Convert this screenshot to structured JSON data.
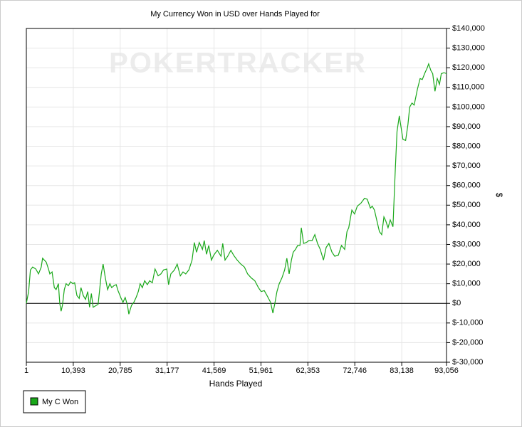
{
  "chart_data": {
    "type": "line",
    "title": "My Currency Won in USD over Hands Played for",
    "watermark": "POKERTRACKER",
    "x_label": "Hands Played",
    "y_label": "$",
    "xlim": [
      1,
      93056
    ],
    "ylim": [
      -30000,
      140000
    ],
    "xticks": [
      1,
      {
        "value": 10393,
        "label": "10,393"
      },
      {
        "value": 20785,
        "label": "20,785"
      },
      {
        "value": 31177,
        "label": "31,177"
      },
      {
        "value": 41569,
        "label": "41,569"
      },
      {
        "value": 51961,
        "label": "51,961"
      },
      {
        "value": 62353,
        "label": "62,353"
      },
      {
        "value": 72746,
        "label": "72,746"
      },
      {
        "value": 83138,
        "label": "83,138"
      },
      {
        "value": 93056,
        "label": "93,056"
      }
    ],
    "yticks": [
      {
        "value": 140000,
        "label": "$140,000"
      },
      {
        "value": 130000,
        "label": "$130,000"
      },
      {
        "value": 120000,
        "label": "$120,000"
      },
      {
        "value": 110000,
        "label": "$110,000"
      },
      {
        "value": 100000,
        "label": "$100,000"
      },
      {
        "value": 90000,
        "label": "$90,000"
      },
      {
        "value": 80000,
        "label": "$80,000"
      },
      {
        "value": 70000,
        "label": "$70,000"
      },
      {
        "value": 60000,
        "label": "$60,000"
      },
      {
        "value": 50000,
        "label": "$50,000"
      },
      {
        "value": 40000,
        "label": "$40,000"
      },
      {
        "value": 30000,
        "label": "$30,000"
      },
      {
        "value": 20000,
        "label": "$20,000"
      },
      {
        "value": 10000,
        "label": "$10,000"
      },
      {
        "value": 0,
        "label": "$0"
      },
      {
        "value": -10000,
        "label": "$-10,000"
      },
      {
        "value": -20000,
        "label": "$-20,000"
      },
      {
        "value": -30000,
        "label": "$-30,000"
      }
    ],
    "grid": true,
    "reference_line": 0,
    "legend_position": "bottom-left",
    "x": [
      1,
      500,
      900,
      1400,
      2100,
      2700,
      3300,
      3600,
      4400,
      4900,
      5200,
      5700,
      6200,
      6600,
      7100,
      7400,
      7700,
      8000,
      8400,
      8800,
      9300,
      9800,
      10300,
      10700,
      11200,
      11700,
      12100,
      12600,
      13100,
      13600,
      14000,
      14400,
      14800,
      15500,
      15900,
      16600,
      17000,
      17500,
      18000,
      18500,
      18900,
      19400,
      19900,
      20300,
      21000,
      21400,
      21900,
      22400,
      22700,
      23300,
      23800,
      24300,
      24800,
      25200,
      25700,
      26200,
      26800,
      27300,
      27900,
      28500,
      29200,
      29800,
      30400,
      31100,
      31500,
      32000,
      32800,
      33400,
      34100,
      34700,
      35300,
      36000,
      36700,
      37200,
      37700,
      38300,
      39000,
      39400,
      39900,
      40400,
      41000,
      41500,
      42300,
      43100,
      43500,
      44000,
      44600,
      45300,
      45900,
      46700,
      47500,
      48300,
      49000,
      49800,
      50600,
      51400,
      52000,
      52700,
      53300,
      54100,
      54600,
      55000,
      55500,
      56000,
      56600,
      57200,
      57700,
      58200,
      58700,
      59100,
      59600,
      60100,
      60600,
      60900,
      61400,
      62000,
      62600,
      63300,
      63900,
      64500,
      65100,
      65800,
      66400,
      67000,
      67700,
      68300,
      69100,
      69800,
      70500,
      71000,
      71400,
      72100,
      72700,
      73300,
      74100,
      74900,
      75500,
      76200,
      76600,
      77100,
      77700,
      78200,
      78700,
      79200,
      79600,
      80100,
      80600,
      81200,
      81700,
      82100,
      82600,
      82900,
      83400,
      84000,
      84500,
      84900,
      85400,
      85900,
      86600,
      87200,
      87700,
      88300,
      88800,
      89100,
      89600,
      90000,
      90500,
      91000,
      91500,
      91900,
      92500,
      93056
    ],
    "series": [
      {
        "name": "My C Won",
        "color": "#1aa81a",
        "values": [
          0,
          6000,
          17000,
          18500,
          17500,
          15000,
          18500,
          23000,
          21000,
          17500,
          15000,
          16000,
          8000,
          7000,
          10000,
          0,
          -4000,
          -1000,
          7000,
          10000,
          9000,
          11000,
          10000,
          10500,
          4000,
          2500,
          8000,
          4000,
          2000,
          6000,
          -2000,
          5000,
          -2000,
          -1000,
          -500,
          15000,
          20000,
          13000,
          7000,
          10000,
          8000,
          9000,
          9500,
          6500,
          2500,
          500,
          3000,
          -1000,
          -5500,
          -1000,
          500,
          3000,
          6000,
          10000,
          8000,
          11500,
          9500,
          11500,
          10500,
          17500,
          14000,
          15000,
          17000,
          17500,
          9500,
          15000,
          17000,
          20000,
          14000,
          16000,
          15000,
          17000,
          22000,
          31000,
          26000,
          31000,
          27500,
          32000,
          25000,
          29500,
          22000,
          24500,
          27000,
          24000,
          30500,
          22000,
          24000,
          27000,
          24500,
          22000,
          20000,
          18500,
          15000,
          13000,
          11500,
          8000,
          6000,
          6500,
          4000,
          500,
          -5000,
          -500,
          6000,
          10000,
          13000,
          17000,
          23000,
          15000,
          22000,
          26000,
          27500,
          29500,
          29500,
          38500,
          30500,
          31000,
          32000,
          32000,
          35000,
          30500,
          27500,
          22000,
          28500,
          30500,
          26000,
          24000,
          24500,
          29500,
          27500,
          36500,
          38500,
          47500,
          45500,
          49500,
          51000,
          53500,
          53000,
          48500,
          49500,
          47500,
          41500,
          36500,
          35000,
          44000,
          42000,
          38500,
          42500,
          39000,
          67500,
          87500,
          95500,
          91000,
          83500,
          83000,
          91000,
          100000,
          102000,
          101000,
          109000,
          114500,
          114000,
          117500,
          120000,
          122000,
          118500,
          117000,
          108000,
          114500,
          111500,
          117000,
          117500,
          117000
        ]
      }
    ]
  }
}
